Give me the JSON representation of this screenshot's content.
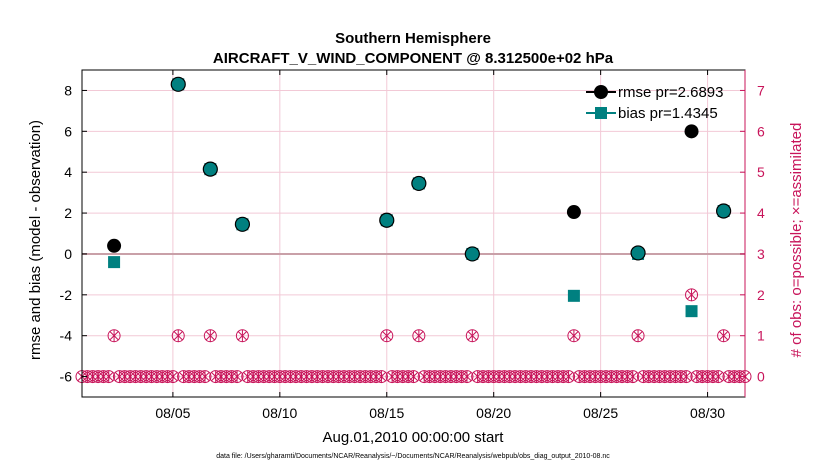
{
  "chart_data": {
    "type": "scatter",
    "title": "Southern Hemisphere",
    "subtitle": "AIRCRAFT_V_WIND_COMPONENT @ 8.312500e+02 hPa",
    "xlabel": "Aug.01,2010 00:00:00 start",
    "ylabel": "rmse and bias (model - observation)",
    "ylabel_right": "# of obs: o=possible; ×=assimilated",
    "footnote": "data file: /Users/gharamti/Documents/NCAR/Reanalysis/~/Documents/NCAR/Reanalysis/webpub/obs_diag_output_2010-08.nc",
    "xlim": [
      1,
      32
    ],
    "ylim": [
      -7,
      9
    ],
    "ylim_right": [
      -0.5,
      7.5
    ],
    "x_ticks": [
      {
        "value": 5.25,
        "label": "08/05"
      },
      {
        "value": 10.25,
        "label": "08/10"
      },
      {
        "value": 15.25,
        "label": "08/15"
      },
      {
        "value": 20.25,
        "label": "08/20"
      },
      {
        "value": 25.25,
        "label": "08/25"
      },
      {
        "value": 30.25,
        "label": "08/30"
      }
    ],
    "y_ticks": [
      {
        "value": -6,
        "label": "-6"
      },
      {
        "value": -4,
        "label": "-4"
      },
      {
        "value": -2,
        "label": "-2"
      },
      {
        "value": 0,
        "label": "0"
      },
      {
        "value": 2,
        "label": "2"
      },
      {
        "value": 4,
        "label": "4"
      },
      {
        "value": 6,
        "label": "6"
      },
      {
        "value": 8,
        "label": "8"
      }
    ],
    "y_ticks_right": [
      {
        "value": 0,
        "label": "0"
      },
      {
        "value": 1,
        "label": "1"
      },
      {
        "value": 2,
        "label": "2"
      },
      {
        "value": 3,
        "label": "3"
      },
      {
        "value": 4,
        "label": "4"
      },
      {
        "value": 5,
        "label": "5"
      },
      {
        "value": 6,
        "label": "6"
      },
      {
        "value": 7,
        "label": "7"
      }
    ],
    "grid": true,
    "zero_line": 0,
    "legend_position": "top-right",
    "colors": {
      "rmse": "#000000",
      "bias": "#008080",
      "obs": "#c8145a",
      "grid": "#f2c9d6"
    },
    "series": [
      {
        "name": "rmse pr=2.6893",
        "marker": "circle",
        "x": [
          2.5,
          5.5,
          7.0,
          8.5,
          15.25,
          16.75,
          19.25,
          24.0,
          27.0,
          29.5,
          31.0
        ],
        "values": [
          0.4,
          8.3,
          4.15,
          1.45,
          1.65,
          3.45,
          0.0,
          2.05,
          0.05,
          6.0,
          2.1
        ]
      },
      {
        "name": "bias pr=1.4345",
        "marker": "square",
        "x": [
          2.5,
          5.5,
          7.0,
          8.5,
          15.25,
          16.75,
          19.25,
          24.0,
          27.0,
          29.5,
          31.0
        ],
        "values": [
          -0.4,
          8.3,
          4.15,
          1.45,
          1.65,
          3.45,
          0.0,
          -2.05,
          0.0,
          -2.8,
          2.1
        ]
      }
    ],
    "obs_counts": {
      "x_nonzero": [
        2.5,
        5.5,
        7.0,
        8.5,
        15.25,
        16.75,
        19.25,
        24.0,
        27.0,
        29.5,
        31.0
      ],
      "possible_nonzero": [
        1,
        1,
        1,
        1,
        1,
        1,
        1,
        1,
        1,
        2,
        1
      ],
      "assimilated_nonzero": [
        1,
        1,
        1,
        1,
        1,
        1,
        1,
        1,
        1,
        2,
        1
      ],
      "zero_count_interval_days": 0.25
    }
  }
}
